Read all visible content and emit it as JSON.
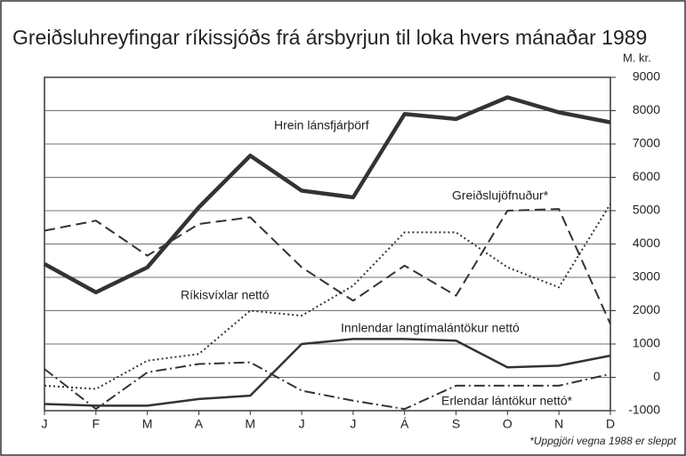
{
  "chart_data": {
    "type": "line",
    "title": "Greiðsluhreyfingar ríkissjóðs frá ársbyrjun til loka hvers mánaðar 1989",
    "y_axis_label": "M. kr.",
    "footnote": "*Uppgjöri vegna 1988 er sleppt",
    "categories": [
      "J",
      "F",
      "M",
      "A",
      "M",
      "J",
      "J",
      "Á",
      "S",
      "O",
      "N",
      "D"
    ],
    "ylim": [
      -1000,
      9000
    ],
    "yticks": [
      -1000,
      0,
      1000,
      2000,
      3000,
      4000,
      5000,
      6000,
      7000,
      8000,
      9000
    ],
    "grid": true,
    "series": [
      {
        "name": "Hrein lánsfjárþörf",
        "color": "#333333",
        "style": "solid",
        "values": [
          3400,
          2550,
          3300,
          5100,
          6650,
          5600,
          5400,
          7900,
          7750,
          8400,
          7950,
          7650
        ]
      },
      {
        "name": "Greiðslujöfnuður*",
        "color": "#333333",
        "style": "dashed",
        "values": [
          4400,
          4700,
          3650,
          4600,
          4800,
          3300,
          2300,
          3350,
          2450,
          5000,
          5050,
          1600
        ]
      },
      {
        "name": "Ríkisvíxlar nettó",
        "color": "#333333",
        "style": "dotted",
        "values": [
          -250,
          -350,
          500,
          700,
          2000,
          1850,
          2750,
          4350,
          4350,
          3300,
          2700,
          5200
        ]
      },
      {
        "name": "Innlendar langtímalántökur nettó",
        "color": "#333333",
        "style": "solid",
        "values": [
          -800,
          -850,
          -850,
          -650,
          -550,
          1000,
          1150,
          1150,
          1100,
          300,
          350,
          650
        ]
      },
      {
        "name": "Erlendar lántökur nettó*",
        "color": "#333333",
        "style": "dashdot",
        "values": [
          250,
          -950,
          150,
          400,
          450,
          -400,
          -700,
          -950,
          -250,
          -250,
          -250,
          100
        ]
      }
    ]
  }
}
